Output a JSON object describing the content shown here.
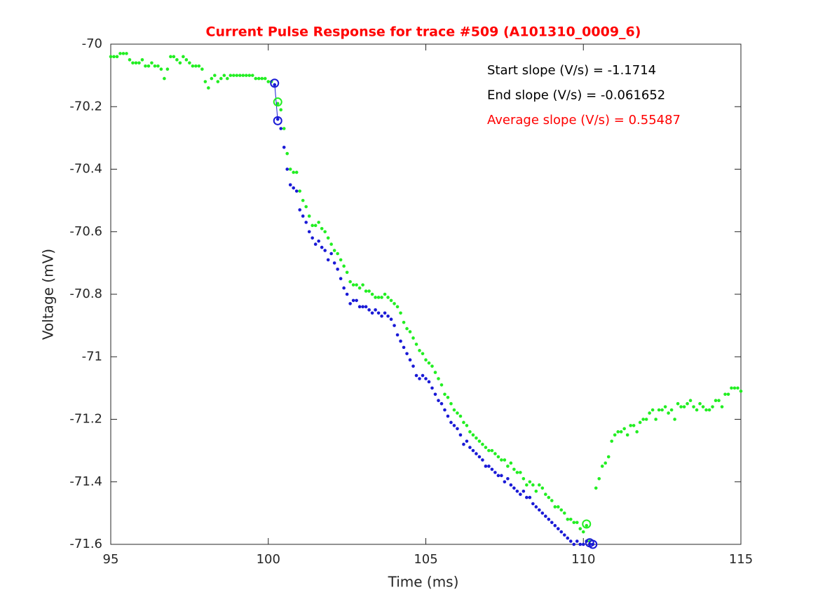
{
  "chart_data": {
    "type": "scatter",
    "title": "Current Pulse Response for trace #509 (A101310_0009_6)",
    "xlabel": "Time (ms)",
    "ylabel": "Voltage (mV)",
    "xlim": [
      95,
      115
    ],
    "xticks": [
      95,
      100,
      105,
      110,
      115
    ],
    "ylim": [
      -71.6,
      -70
    ],
    "yticks": [
      -71.6,
      -71.4,
      -71.2,
      -71,
      -70.8,
      -70.6,
      -70.4,
      -70.2,
      -70
    ],
    "annotations": [
      {
        "text": "Start slope (V/s) = -1.1714",
        "color": "#000000"
      },
      {
        "text": "End slope (V/s) = -0.061652",
        "color": "#000000"
      },
      {
        "text": "Average slope (V/s) = 0.55487",
        "color": "#ff0000"
      }
    ],
    "series": [
      {
        "color": "#22ee22",
        "x": [
          95.0,
          95.1,
          95.2,
          95.3,
          95.4,
          95.5,
          95.6,
          95.7,
          95.8,
          95.9,
          96.0,
          96.1,
          96.2,
          96.3,
          96.4,
          96.5,
          96.6,
          96.7,
          96.8,
          96.9,
          97.0,
          97.1,
          97.2,
          97.3,
          97.4,
          97.5,
          97.6,
          97.7,
          97.8,
          97.9,
          98.0,
          98.1,
          98.2,
          98.3,
          98.4,
          98.5,
          98.6,
          98.7,
          98.8,
          98.9,
          99.0,
          99.1,
          99.2,
          99.3,
          99.4,
          99.5,
          99.6,
          99.7,
          99.8,
          99.9,
          100.0,
          100.1,
          100.2,
          100.3,
          100.4,
          100.5,
          100.6,
          100.7,
          100.8,
          100.9,
          101.0,
          101.1,
          101.2,
          101.3,
          101.4,
          101.5,
          101.6,
          101.7,
          101.8,
          101.9,
          102.0,
          102.1,
          102.2,
          102.3,
          102.4,
          102.5,
          102.6,
          102.7,
          102.8,
          102.9,
          103.0,
          103.1,
          103.2,
          103.3,
          103.4,
          103.5,
          103.6,
          103.7,
          103.8,
          103.9,
          104.0,
          104.1,
          104.2,
          104.3,
          104.4,
          104.5,
          104.6,
          104.7,
          104.8,
          104.9,
          105.0,
          105.1,
          105.2,
          105.3,
          105.4,
          105.5,
          105.6,
          105.7,
          105.8,
          105.9,
          106.0,
          106.1,
          106.2,
          106.3,
          106.4,
          106.5,
          106.6,
          106.7,
          106.8,
          106.9,
          107.0,
          107.1,
          107.2,
          107.3,
          107.4,
          107.5,
          107.6,
          107.7,
          107.8,
          107.9,
          108.0,
          108.1,
          108.2,
          108.3,
          108.4,
          108.5,
          108.6,
          108.7,
          108.8,
          108.9,
          109.0,
          109.1,
          109.2,
          109.3,
          109.4,
          109.5,
          109.6,
          109.7,
          109.8,
          109.9,
          110.0,
          110.1,
          110.2,
          110.3,
          110.4,
          110.5,
          110.6,
          110.7,
          110.8,
          110.9,
          111.0,
          111.1,
          111.2,
          111.3,
          111.4,
          111.5,
          111.6,
          111.7,
          111.8,
          111.9,
          112.0,
          112.1,
          112.2,
          112.3,
          112.4,
          112.5,
          112.6,
          112.7,
          112.8,
          112.9,
          113.0,
          113.1,
          113.2,
          113.3,
          113.4,
          113.5,
          113.6,
          113.7,
          113.8,
          113.9,
          114.0,
          114.1,
          114.2,
          114.3,
          114.4,
          114.5,
          114.6,
          114.7,
          114.8,
          114.9,
          115.0
        ],
        "values": [
          -70.04,
          -70.04,
          -70.04,
          -70.03,
          -70.03,
          -70.03,
          -70.05,
          -70.06,
          -70.06,
          -70.06,
          -70.05,
          -70.07,
          -70.07,
          -70.06,
          -70.07,
          -70.07,
          -70.08,
          -70.11,
          -70.08,
          -70.04,
          -70.04,
          -70.05,
          -70.06,
          -70.04,
          -70.05,
          -70.06,
          -70.07,
          -70.07,
          -70.07,
          -70.08,
          -70.12,
          -70.14,
          -70.11,
          -70.1,
          -70.12,
          -70.11,
          -70.1,
          -70.11,
          -70.1,
          -70.1,
          -70.1,
          -70.1,
          -70.1,
          -70.1,
          -70.1,
          -70.1,
          -70.11,
          -70.11,
          -70.11,
          -70.11,
          -70.12,
          -70.12,
          -70.13,
          -70.19,
          -70.21,
          -70.27,
          -70.35,
          -70.4,
          -70.41,
          -70.41,
          -70.47,
          -70.5,
          -70.52,
          -70.55,
          -70.58,
          -70.58,
          -70.57,
          -70.59,
          -70.6,
          -70.62,
          -70.64,
          -70.66,
          -70.67,
          -70.69,
          -70.71,
          -70.73,
          -70.76,
          -70.77,
          -70.77,
          -70.78,
          -70.77,
          -70.79,
          -70.79,
          -70.8,
          -70.81,
          -70.81,
          -70.81,
          -70.8,
          -70.81,
          -70.82,
          -70.83,
          -70.84,
          -70.86,
          -70.89,
          -70.91,
          -70.92,
          -70.94,
          -70.96,
          -70.98,
          -70.99,
          -71.01,
          -71.02,
          -71.03,
          -71.05,
          -71.07,
          -71.09,
          -71.12,
          -71.13,
          -71.15,
          -71.17,
          -71.18,
          -71.19,
          -71.21,
          -71.22,
          -71.24,
          -71.25,
          -71.26,
          -71.27,
          -71.28,
          -71.29,
          -71.3,
          -71.3,
          -71.31,
          -71.32,
          -71.33,
          -71.33,
          -71.35,
          -71.34,
          -71.36,
          -71.37,
          -71.37,
          -71.39,
          -71.41,
          -71.4,
          -71.41,
          -71.43,
          -71.41,
          -71.42,
          -71.44,
          -71.45,
          -71.46,
          -71.48,
          -71.48,
          -71.49,
          -71.5,
          -71.52,
          -71.52,
          -71.53,
          -71.53,
          -71.55,
          -71.56,
          -71.54,
          -71.59,
          -71.6,
          -71.42,
          -71.39,
          -71.35,
          -71.34,
          -71.32,
          -71.27,
          -71.25,
          -71.24,
          -71.24,
          -71.23,
          -71.25,
          -71.22,
          -71.22,
          -71.24,
          -71.21,
          -71.2,
          -71.2,
          -71.18,
          -71.17,
          -71.2,
          -71.17,
          -71.17,
          -71.16,
          -71.18,
          -71.17,
          -71.2,
          -71.15,
          -71.16,
          -71.16,
          -71.15,
          -71.14,
          -71.16,
          -71.17,
          -71.15,
          -71.16,
          -71.17,
          -71.17,
          -71.16,
          -71.14,
          -71.14,
          -71.16,
          -71.12,
          -71.12,
          -71.1,
          -71.1,
          -71.1,
          -71.11
        ]
      },
      {
        "color": "#1a1ad6",
        "x": [
          100.2,
          100.3,
          100.4,
          100.5,
          100.6,
          100.7,
          100.8,
          100.9,
          101.0,
          101.1,
          101.2,
          101.3,
          101.4,
          101.5,
          101.6,
          101.7,
          101.8,
          101.9,
          102.0,
          102.1,
          102.2,
          102.3,
          102.4,
          102.5,
          102.6,
          102.7,
          102.8,
          102.9,
          103.0,
          103.1,
          103.2,
          103.3,
          103.4,
          103.5,
          103.6,
          103.7,
          103.8,
          103.9,
          104.0,
          104.1,
          104.2,
          104.3,
          104.4,
          104.5,
          104.6,
          104.7,
          104.8,
          104.9,
          105.0,
          105.1,
          105.2,
          105.3,
          105.4,
          105.5,
          105.6,
          105.7,
          105.8,
          105.9,
          106.0,
          106.1,
          106.2,
          106.3,
          106.4,
          106.5,
          106.6,
          106.7,
          106.8,
          106.9,
          107.0,
          107.1,
          107.2,
          107.3,
          107.4,
          107.5,
          107.6,
          107.7,
          107.8,
          107.9,
          108.0,
          108.1,
          108.2,
          108.3,
          108.4,
          108.5,
          108.6,
          108.7,
          108.8,
          108.9,
          109.0,
          109.1,
          109.2,
          109.3,
          109.4,
          109.5,
          109.6,
          109.7,
          109.8,
          109.9,
          110.0,
          110.1,
          110.2,
          110.3
        ],
        "values": [
          -70.13,
          -70.24,
          -70.27,
          -70.33,
          -70.4,
          -70.45,
          -70.46,
          -70.47,
          -70.53,
          -70.55,
          -70.57,
          -70.6,
          -70.62,
          -70.64,
          -70.63,
          -70.65,
          -70.66,
          -70.69,
          -70.67,
          -70.7,
          -70.72,
          -70.75,
          -70.78,
          -70.8,
          -70.83,
          -70.82,
          -70.82,
          -70.84,
          -70.84,
          -70.84,
          -70.85,
          -70.86,
          -70.85,
          -70.86,
          -70.87,
          -70.86,
          -70.87,
          -70.88,
          -70.9,
          -70.93,
          -70.95,
          -70.97,
          -70.99,
          -71.01,
          -71.03,
          -71.06,
          -71.07,
          -71.06,
          -71.07,
          -71.08,
          -71.1,
          -71.12,
          -71.14,
          -71.15,
          -71.17,
          -71.19,
          -71.21,
          -71.22,
          -71.23,
          -71.25,
          -71.28,
          -71.27,
          -71.29,
          -71.3,
          -71.31,
          -71.32,
          -71.33,
          -71.35,
          -71.35,
          -71.36,
          -71.37,
          -71.38,
          -71.38,
          -71.4,
          -71.39,
          -71.41,
          -71.42,
          -71.43,
          -71.44,
          -71.43,
          -71.45,
          -71.45,
          -71.47,
          -71.48,
          -71.49,
          -71.5,
          -71.51,
          -71.52,
          -71.53,
          -71.54,
          -71.55,
          -71.56,
          -71.57,
          -71.58,
          -71.59,
          -71.6,
          -71.59,
          -71.6,
          -71.6,
          -71.59,
          -71.6,
          -71.6
        ]
      }
    ],
    "highlights": [
      {
        "color": "#1a1ad6",
        "x": [
          100.2,
          100.3
        ],
        "values": [
          -70.125,
          -70.245
        ]
      },
      {
        "color": "#22ee22",
        "x": [
          100.3
        ],
        "values": [
          -70.185
        ]
      },
      {
        "color": "#22ee22",
        "x": [
          110.1
        ],
        "values": [
          -71.535
        ]
      },
      {
        "color": "#1a1ad6",
        "x": [
          110.2,
          110.3
        ],
        "values": [
          -71.595,
          -71.6
        ]
      }
    ]
  }
}
